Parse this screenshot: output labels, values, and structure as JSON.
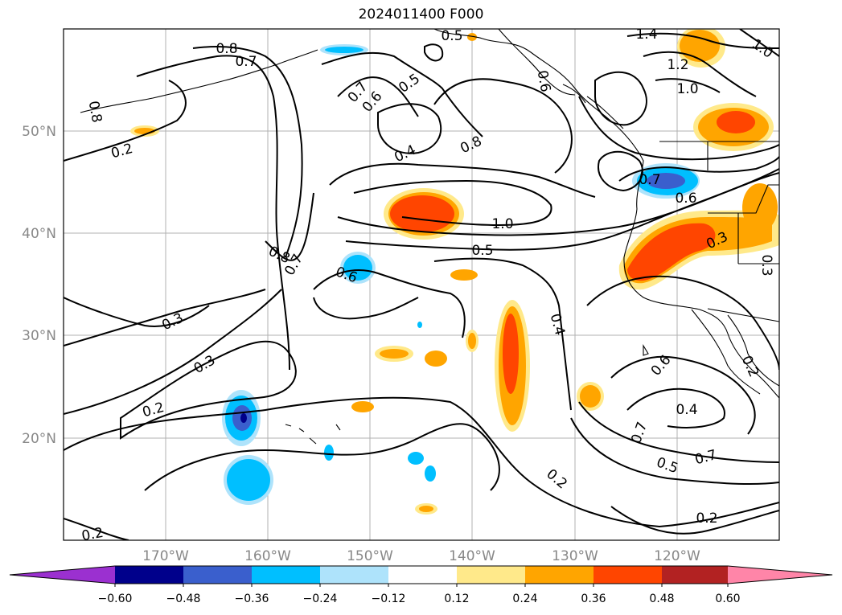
{
  "title": "2024011400 F000",
  "colors": {
    "purple": "#9b30d0",
    "navy": "#00008b",
    "blue": "#3a5fcd",
    "cyan": "#00bfff",
    "lightblue": "#aee3fb",
    "yellow": "#ffe98a",
    "orange": "#ffa500",
    "redorange": "#ff4500",
    "darkred": "#b22222",
    "pink": "#ff85a8"
  },
  "map": {
    "lat_labels": [
      "50°N",
      "40°N",
      "30°N",
      "20°N"
    ],
    "lon_labels": [
      "170°W",
      "160°W",
      "150°W",
      "140°W",
      "130°W",
      "120°W"
    ],
    "extent": {
      "lon": [
        -180,
        -110
      ],
      "lat": [
        10,
        60
      ]
    }
  },
  "contour_labels": [
    "0.5",
    "1.4",
    "1.0",
    "0.8",
    "0.7",
    "0.7",
    "0.6",
    "0.5",
    "0.6",
    "1.2",
    "1.0",
    "0.8",
    "0.2",
    "0.4",
    "0.8",
    "0.7",
    "0.6",
    "1.0",
    "0.5",
    "0.8",
    "0.7",
    "0.6",
    "0.3",
    "0.3",
    "0.3",
    "0.4",
    "0.6",
    "0.2",
    "0.4",
    "0.7",
    "0.7",
    "0.5",
    "0.2",
    "0.2",
    "0.2",
    "0.3",
    "0.2"
  ],
  "colorbar": {
    "ticks": [
      "−0.60",
      "−0.48",
      "−0.36",
      "−0.24",
      "−0.12",
      "0.12",
      "0.24",
      "0.36",
      "0.48",
      "0.60"
    ]
  }
}
